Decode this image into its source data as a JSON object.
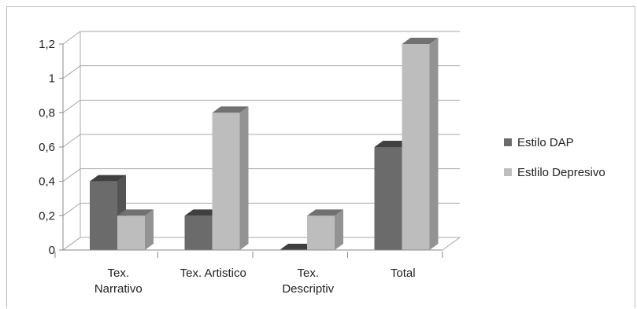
{
  "chart_data": {
    "type": "bar",
    "title": "",
    "xlabel": "",
    "ylabel": "",
    "categories": [
      [
        "Tex.",
        "Narrativo"
      ],
      [
        "Tex. Artistico"
      ],
      [
        "Tex.",
        "Descriptiv"
      ],
      [
        "Total"
      ]
    ],
    "series": [
      {
        "name": "Estilo DAP",
        "values": [
          0.4,
          0.2,
          0.0,
          0.6
        ],
        "color": "#6b6b6b"
      },
      {
        "name": "Estlilo Depresivo",
        "values": [
          0.2,
          0.8,
          0.2,
          1.2
        ],
        "color": "#bdbdbd"
      }
    ],
    "yticks": [
      "0",
      "0,2",
      "0,4",
      "0,6",
      "0,8",
      "1",
      "1,2"
    ],
    "ylim": [
      0,
      1.2
    ],
    "grid": true,
    "legend": "right",
    "three_d": true
  }
}
